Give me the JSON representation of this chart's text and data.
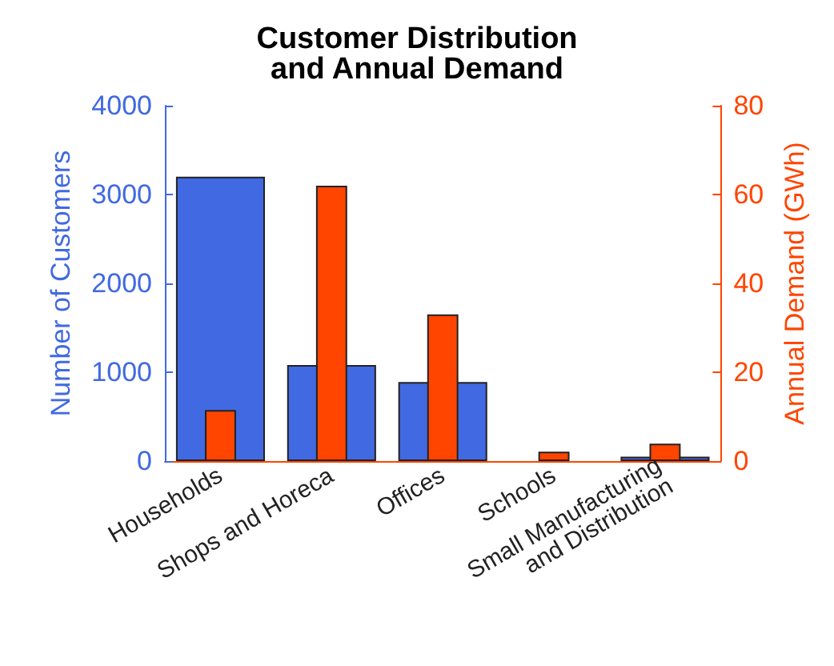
{
  "chart_data": {
    "type": "bar",
    "title": "Customer Distribution\nand Annual Demand",
    "categories": [
      "Households",
      "Shops and Horeca",
      "Offices",
      "Schools",
      "Small Manufacturing\nand Distribution"
    ],
    "ylabel": "Number of Customers",
    "y2label": "Annual Demand (GWh)",
    "series": [
      {
        "color": "#4169e1",
        "values": [
          3200,
          1080,
          890,
          0,
          50
        ]
      },
      {
        "color": "#ff4500",
        "axis": "y2",
        "values": [
          11.5,
          62,
          33,
          2.1,
          3.9
        ]
      }
    ],
    "ylim": [
      0,
      4000
    ],
    "yticks": [
      0,
      1000,
      2000,
      3000,
      4000
    ],
    "y2lim": [
      0,
      80
    ],
    "y2ticks": [
      0,
      20,
      40,
      60,
      80
    ],
    "grid": false
  }
}
